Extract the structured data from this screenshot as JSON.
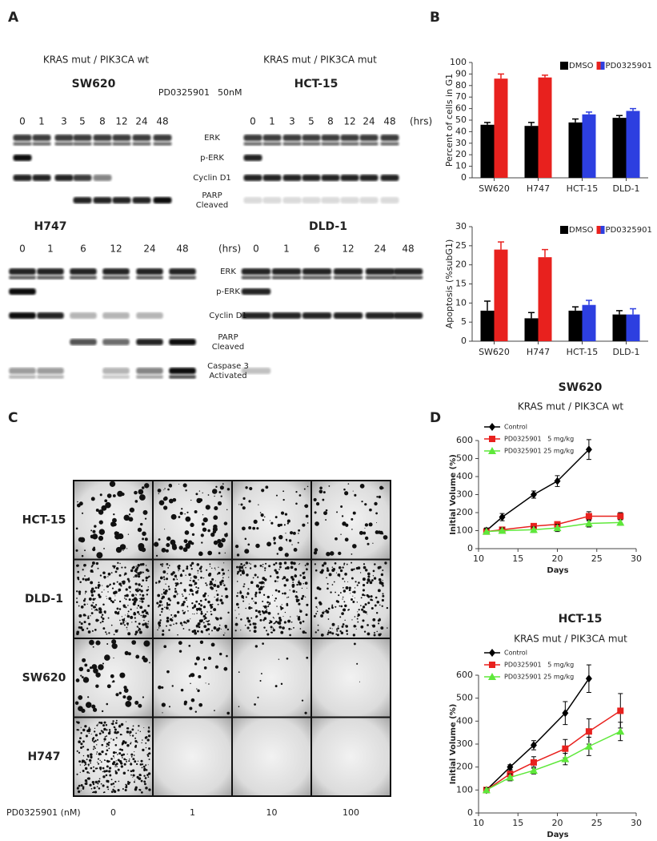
{
  "panel_a": {
    "label": "A",
    "treatment": "PD0325901",
    "dose": "50nM",
    "unit": "(hrs)",
    "genotypes": [
      {
        "text": "KRAS mut / PIK3CA wt",
        "color": "#e8211e"
      },
      {
        "text": "KRAS mut / PIK3CA mut",
        "color": "#2d3fe0"
      }
    ],
    "top": {
      "row_labels": [
        [
          "ERK"
        ],
        [
          "p-ERK"
        ],
        [
          "Cyclin D1"
        ],
        [
          "PARP",
          "Cleaved"
        ]
      ],
      "blots": [
        {
          "cell_line": "SW620",
          "color": "#e8211e",
          "lanes": [
            "0",
            "1",
            "3",
            "5",
            "8",
            "12",
            "24",
            "48"
          ]
        },
        {
          "cell_line": "HCT-15",
          "color": "#2d3fe0",
          "lanes": [
            "0",
            "1",
            "3",
            "5",
            "8",
            "12",
            "24",
            "48"
          ]
        }
      ]
    },
    "bottom": {
      "row_labels": [
        [
          "ERK"
        ],
        [
          "p-ERK"
        ],
        [
          "Cyclin D1"
        ],
        [
          "PARP",
          "Cleaved"
        ],
        [
          "Caspase 3",
          "Activated"
        ]
      ],
      "blots": [
        {
          "cell_line": "H747",
          "color": "#e8211e",
          "lanes": [
            "0",
            "1",
            "6",
            "12",
            "24",
            "48"
          ]
        },
        {
          "cell_line": "DLD-1",
          "color": "#2d3fe0",
          "lanes": [
            "0",
            "1",
            "6",
            "12",
            "24",
            "48"
          ]
        }
      ]
    }
  },
  "panel_b": {
    "label": "B"
  },
  "panel_c": {
    "label": "C",
    "x_label": "PD0325901 (nM)",
    "concentrations": [
      "0",
      "1",
      "10",
      "100"
    ],
    "rows": [
      {
        "cell_line": "HCT-15",
        "color": "#2d3fe0"
      },
      {
        "cell_line": "DLD-1",
        "color": "#2d3fe0"
      },
      {
        "cell_line": "SW620",
        "color": "#e8211e"
      },
      {
        "cell_line": "H747",
        "color": "#e8211e"
      }
    ]
  },
  "panel_d": {
    "label": "D"
  },
  "chart_data": [
    {
      "type": "bar",
      "y_label": "Percent of cells in G1",
      "categories": [
        "SW620",
        "H747",
        "HCT-15",
        "DLD-1"
      ],
      "ylim": [
        0,
        100
      ],
      "yticks": [
        0,
        10,
        20,
        30,
        40,
        50,
        60,
        70,
        80,
        90,
        100
      ],
      "series": [
        {
          "name": "DMSO",
          "colors": [
            "#000000",
            "#000000",
            "#000000",
            "#000000"
          ],
          "values": [
            46,
            45,
            48,
            52
          ],
          "errors": [
            2,
            3,
            3,
            2
          ]
        },
        {
          "name": "PD0325901",
          "colors": [
            "#e8211e",
            "#e8211e",
            "#2d3fe0",
            "#2d3fe0"
          ],
          "values": [
            86,
            87,
            55,
            58
          ],
          "errors": [
            4,
            2,
            2,
            2
          ]
        }
      ]
    },
    {
      "type": "bar",
      "y_label": "Apoptosis (%subG1)",
      "categories": [
        "SW620",
        "H747",
        "HCT-15",
        "DLD-1"
      ],
      "ylim": [
        0,
        30
      ],
      "yticks": [
        0,
        5,
        10,
        15,
        20,
        25,
        30
      ],
      "series": [
        {
          "name": "DMSO",
          "colors": [
            "#000000",
            "#000000",
            "#000000",
            "#000000"
          ],
          "values": [
            8,
            6,
            8,
            7
          ],
          "errors": [
            2.5,
            1.5,
            1,
            1
          ]
        },
        {
          "name": "PD0325901",
          "colors": [
            "#e8211e",
            "#e8211e",
            "#2d3fe0",
            "#2d3fe0"
          ],
          "values": [
            24,
            22,
            9.5,
            7
          ],
          "errors": [
            2,
            2,
            1.2,
            1.5
          ]
        }
      ]
    },
    {
      "type": "line",
      "title": "SW620",
      "title_color": "#e8211e",
      "subtitle": "KRAS mut / PIK3CA wt",
      "x_label": "Days",
      "y_label": "Initial Volume (%)",
      "xlim": [
        10,
        30
      ],
      "xticks": [
        10,
        15,
        20,
        25,
        30
      ],
      "ylim": [
        0,
        600
      ],
      "yticks": [
        0,
        100,
        200,
        300,
        400,
        500,
        600
      ],
      "series": [
        {
          "name": "Control",
          "color": "#000000",
          "marker": "diamond",
          "x": [
            11,
            13,
            17,
            20,
            24
          ],
          "values": [
            100,
            175,
            300,
            375,
            550
          ],
          "errors": [
            15,
            20,
            20,
            30,
            55
          ]
        },
        {
          "name": "PD0325901   5 mg/kg",
          "color": "#e8211e",
          "marker": "square",
          "x": [
            11,
            13,
            17,
            20,
            24,
            28
          ],
          "values": [
            95,
            105,
            125,
            135,
            180,
            180
          ],
          "errors": [
            15,
            15,
            15,
            10,
            25,
            20
          ]
        },
        {
          "name": "PD0325901 25 mg/kg",
          "color": "#5ee83a",
          "marker": "triangle",
          "x": [
            11,
            13,
            17,
            20,
            24,
            28
          ],
          "values": [
            95,
            100,
            105,
            115,
            140,
            145
          ],
          "errors": [
            15,
            15,
            15,
            20,
            20,
            15
          ]
        }
      ]
    },
    {
      "type": "line",
      "title": "HCT-15",
      "title_color": "#2d3fe0",
      "subtitle": "KRAS mut / PIK3CA mut",
      "x_label": "Days",
      "y_label": "Initial Volume (%)",
      "xlim": [
        10,
        30
      ],
      "xticks": [
        10,
        15,
        20,
        25,
        30
      ],
      "ylim": [
        0,
        600
      ],
      "yticks": [
        0,
        100,
        200,
        300,
        400,
        500,
        600
      ],
      "series": [
        {
          "name": "Control",
          "color": "#000000",
          "marker": "diamond",
          "x": [
            11,
            14,
            17,
            21,
            24
          ],
          "values": [
            100,
            200,
            295,
            435,
            585
          ],
          "errors": [
            10,
            10,
            20,
            50,
            60
          ]
        },
        {
          "name": "PD0325901   5 mg/kg",
          "color": "#e8211e",
          "marker": "square",
          "x": [
            11,
            14,
            17,
            21,
            24,
            28
          ],
          "values": [
            100,
            170,
            220,
            280,
            355,
            445
          ],
          "errors": [
            10,
            15,
            25,
            40,
            55,
            75
          ]
        },
        {
          "name": "PD0325901 25 mg/kg",
          "color": "#5ee83a",
          "marker": "triangle",
          "x": [
            11,
            14,
            17,
            21,
            24,
            28
          ],
          "values": [
            100,
            155,
            185,
            235,
            290,
            355
          ],
          "errors": [
            10,
            15,
            15,
            25,
            40,
            40
          ]
        }
      ]
    }
  ]
}
